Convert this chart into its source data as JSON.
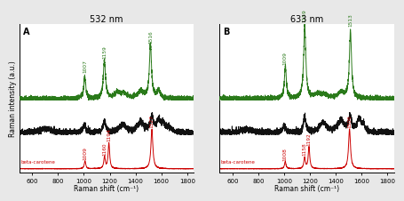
{
  "panel_A_title": "532 nm",
  "panel_B_title": "633 nm",
  "xlabel": "Raman shift (cm⁻¹)",
  "ylabel": "Raman intensity (a.u.)",
  "xmin": 500,
  "xmax": 1850,
  "xticks": [
    600,
    800,
    1000,
    1200,
    1400,
    1600,
    1800
  ],
  "panel_A_label": "A",
  "panel_B_label": "B",
  "colors": {
    "red": "#cc0000",
    "green": "#2a7a1a",
    "black": "#111111"
  },
  "annotation_color_red": "#cc0000",
  "annotation_color_green": "#2a7a1a",
  "panel_A_annotations_green": [
    {
      "x": 1007,
      "label": "1007"
    },
    {
      "x": 1159,
      "label": "1159"
    },
    {
      "x": 1516,
      "label": "1516"
    }
  ],
  "panel_A_annotations_red_black": [
    {
      "x": 1009,
      "label": "1009",
      "color": "red"
    },
    {
      "x": 1160,
      "label": "1160",
      "color": "red"
    },
    {
      "x": 1194,
      "label": "1194",
      "color": "red"
    },
    {
      "x": 1527,
      "label": "1527",
      "color": "red"
    }
  ],
  "panel_B_annotations_green": [
    {
      "x": 1009,
      "label": "1009"
    },
    {
      "x": 1159,
      "label": "1159"
    },
    {
      "x": 1513,
      "label": "1513"
    }
  ],
  "panel_B_annotations_red_black": [
    {
      "x": 1008,
      "label": "1008",
      "color": "red"
    },
    {
      "x": 1158,
      "label": "1158",
      "color": "red"
    },
    {
      "x": 1192,
      "label": "1192",
      "color": "red"
    },
    {
      "x": 1506,
      "label": "1506",
      "color": "red"
    }
  ],
  "beta_carotene_label": "beta-carotene",
  "background_color": "#ffffff",
  "figure_face_color": "#e8e8e8"
}
